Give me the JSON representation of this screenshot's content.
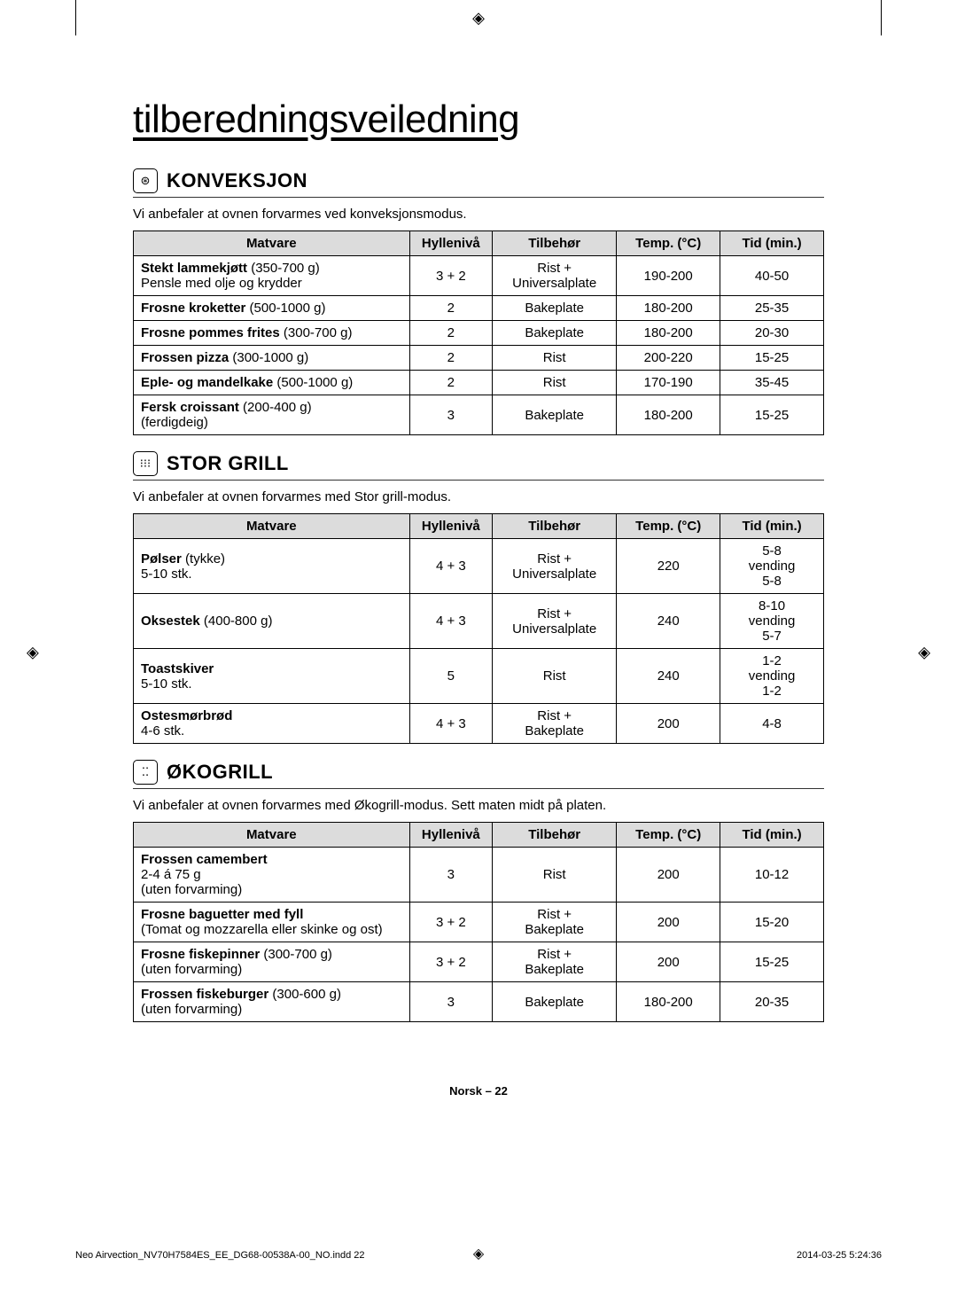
{
  "pageTitle": "tilberedningsveiledning",
  "sections": [
    {
      "icon": "⊛",
      "title": "KONVEKSJON",
      "subtitle": "Vi anbefaler at ovnen forvarmes ved konveksjonsmodus.",
      "headers": [
        "Matvare",
        "Hyllenivå",
        "Tilbehør",
        "Temp. (°C)",
        "Tid (min.)"
      ],
      "rows": [
        [
          "<b>Stekt lammekjøtt</b> (350-700 g)<br>Pensle med olje og krydder",
          "3 + 2",
          "Rist +<br>Universalplate",
          "190-200",
          "40-50"
        ],
        [
          "<b>Frosne kroketter</b> (500-1000 g)",
          "2",
          "Bakeplate",
          "180-200",
          "25-35"
        ],
        [
          "<b>Frosne pommes frites</b> (300-700 g)",
          "2",
          "Bakeplate",
          "180-200",
          "20-30"
        ],
        [
          "<b>Frossen pizza</b> (300-1000 g)",
          "2",
          "Rist",
          "200-220",
          "15-25"
        ],
        [
          "<b>Eple- og mandelkake</b> (500-1000 g)",
          "2",
          "Rist",
          "170-190",
          "35-45"
        ],
        [
          "<b>Fersk croissant</b> (200-400 g)<br>(ferdigdeig)",
          "3",
          "Bakeplate",
          "180-200",
          "15-25"
        ]
      ]
    },
    {
      "icon": "⁝⁝⁝",
      "title": "STOR GRILL",
      "subtitle": "Vi anbefaler at ovnen forvarmes med Stor grill-modus.",
      "headers": [
        "Matvare",
        "Hyllenivå",
        "Tilbehør",
        "Temp. (°C)",
        "Tid (min.)"
      ],
      "rows": [
        [
          "<b>Pølser</b> (tykke)<br>5-10 stk.",
          "4 + 3",
          "Rist +<br>Universalplate",
          "220",
          "5-8<br>vending<br>5-8"
        ],
        [
          "<b>Oksestek</b> (400-800 g)",
          "4 + 3",
          "Rist +<br>Universalplate",
          "240",
          "8-10<br>vending<br>5-7"
        ],
        [
          "<b>Toastskiver</b><br>5-10 stk.",
          "5",
          "Rist",
          "240",
          "1-2<br>vending<br>1-2"
        ],
        [
          "<b>Ostesmørbrød</b><br>4-6 stk.",
          "4 + 3",
          "Rist +<br>Bakeplate",
          "200",
          "4-8"
        ]
      ]
    },
    {
      "icon": "⁚⁚",
      "title": "ØKOGRILL",
      "subtitle": "Vi anbefaler at ovnen forvarmes med Økogrill-modus. Sett maten midt på platen.",
      "headers": [
        "Matvare",
        "Hyllenivå",
        "Tilbehør",
        "Temp. (°C)",
        "Tid (min.)"
      ],
      "rows": [
        [
          "<b>Frossen camembert</b><br>2-4 á 75 g<br>(uten forvarming)",
          "3",
          "Rist",
          "200",
          "10-12"
        ],
        [
          "<b>Frosne baguetter med fyll</b><br>(Tomat og mozzarella eller skinke og ost)",
          "3 + 2",
          "Rist +<br>Bakeplate",
          "200",
          "15-20"
        ],
        [
          "<b>Frosne fiskepinner</b> (300-700 g)<br>(uten forvarming)",
          "3 + 2",
          "Rist +<br>Bakeplate",
          "200",
          "15-25"
        ],
        [
          "<b>Frossen fiskeburger</b> (300-600 g)<br>(uten forvarming)",
          "3",
          "Bakeplate",
          "180-200",
          "20-35"
        ]
      ]
    }
  ],
  "footer": {
    "pageLabel": "Norsk – 22",
    "file": "Neo Airvection_NV70H7584ES_EE_DG68-00538A-00_NO.indd   22",
    "timestamp": "2014-03-25   5:24:36"
  },
  "colWidths": [
    "40%",
    "12%",
    "18%",
    "15%",
    "15%"
  ]
}
